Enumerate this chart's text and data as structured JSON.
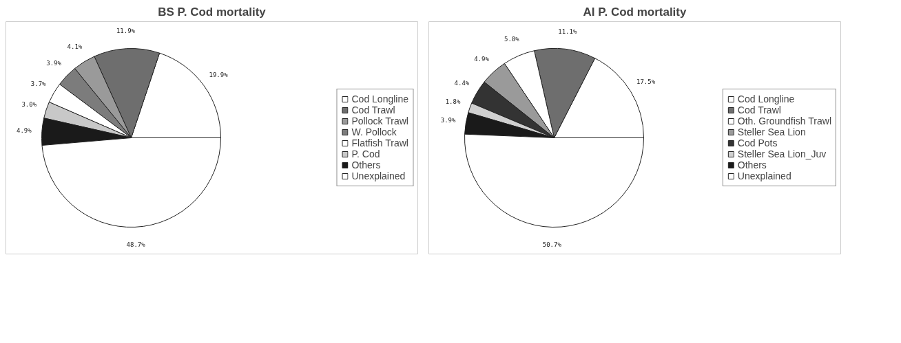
{
  "chart_data": [
    {
      "type": "pie",
      "title": "BS P. Cod mortality",
      "categories": [
        "Cod Longline",
        "Cod Trawl",
        "Pollock Trawl",
        "W. Pollock",
        "Flatfish Trawl",
        "P. Cod",
        "Others",
        "Unexplained"
      ],
      "values": [
        19.9,
        11.9,
        4.1,
        3.9,
        3.7,
        3.0,
        4.9,
        48.7
      ],
      "colors": [
        "#ffffff",
        "#6e6e6e",
        "#9a9a9a",
        "#7c7c7c",
        "#ffffff",
        "#c8c8c8",
        "#1a1a1a",
        "#ffffff"
      ],
      "value_labels": [
        "19.9%",
        "11.9%",
        "4.1%",
        "3.9%",
        "3.7%",
        "3.0%",
        "4.9%",
        "48.7%"
      ],
      "legend": "right"
    },
    {
      "type": "pie",
      "title": "AI P. Cod mortality",
      "categories": [
        "Cod Longline",
        "Cod Trawl",
        "Oth. Groundfish Trawl",
        "Steller Sea Lion",
        "Cod Pots",
        "Steller Sea Lion_Juv",
        "Others",
        "Unexplained"
      ],
      "values": [
        17.5,
        11.1,
        5.8,
        4.9,
        4.4,
        1.8,
        3.9,
        50.7
      ],
      "colors": [
        "#ffffff",
        "#6e6e6e",
        "#ffffff",
        "#9a9a9a",
        "#333333",
        "#d0d0d0",
        "#1a1a1a",
        "#ffffff"
      ],
      "value_labels": [
        "17.5%",
        "11.1%",
        "5.8%",
        "4.9%",
        "4.4%",
        "1.8%",
        "3.9%",
        "50.7%"
      ],
      "legend": "right"
    }
  ]
}
